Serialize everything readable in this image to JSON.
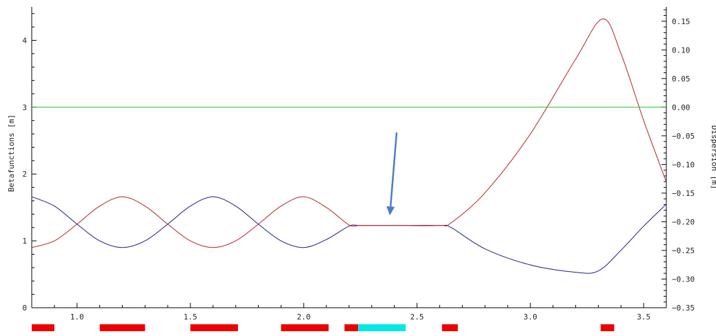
{
  "chart_data": {
    "type": "line",
    "xlabel": "",
    "ylabel_left": "Betafunctions [m]",
    "ylabel_right": "Dispersion [m]",
    "xlim": [
      0.8,
      3.6
    ],
    "ylim_left": [
      0,
      4.5
    ],
    "ylim_right": [
      -0.35,
      0.175
    ],
    "x_ticks": [
      "1.0",
      "1.5",
      "2.0",
      "2.5",
      "3.0",
      "3.5"
    ],
    "x_tick_values": [
      1.0,
      1.5,
      2.0,
      2.5,
      3.0,
      3.5
    ],
    "y_left_ticks": [
      "0",
      "1",
      "2",
      "3",
      "4"
    ],
    "y_left_tick_values": [
      0,
      1,
      2,
      3,
      4
    ],
    "y_right_ticks": [
      "−0.35",
      "−0.30",
      "−0.25",
      "−0.20",
      "−0.15",
      "−0.10",
      "−0.05",
      "0.00",
      "0.05",
      "0.10",
      "0.15"
    ],
    "y_right_tick_values": [
      -0.35,
      -0.3,
      -0.25,
      -0.2,
      -0.15,
      -0.1,
      -0.05,
      0.0,
      0.05,
      0.1,
      0.15
    ],
    "grid": false,
    "series": [
      {
        "axis": "left",
        "color": "#1a1a8c",
        "x": [
          0.8,
          0.9,
          1.0,
          1.1,
          1.2,
          1.3,
          1.4,
          1.5,
          1.6,
          1.7,
          1.8,
          1.9,
          2.0,
          2.1,
          2.2,
          2.25,
          2.4,
          2.6,
          2.65,
          2.8,
          3.0,
          3.2,
          3.3,
          3.4,
          3.5,
          3.6
        ],
        "y": [
          1.66,
          1.52,
          1.25,
          1.0,
          0.9,
          1.0,
          1.25,
          1.52,
          1.66,
          1.52,
          1.25,
          1.0,
          0.9,
          1.02,
          1.22,
          1.23,
          1.23,
          1.23,
          1.2,
          0.88,
          0.64,
          0.53,
          0.55,
          0.86,
          1.22,
          1.55
        ]
      },
      {
        "axis": "left",
        "color": "#b82020",
        "x": [
          0.8,
          0.9,
          1.0,
          1.1,
          1.2,
          1.3,
          1.4,
          1.5,
          1.6,
          1.7,
          1.8,
          1.9,
          2.0,
          2.1,
          2.2,
          2.25,
          2.4,
          2.6,
          2.65,
          2.8,
          3.0,
          3.2,
          3.32,
          3.4,
          3.5,
          3.6
        ],
        "y": [
          0.9,
          1.0,
          1.25,
          1.52,
          1.66,
          1.52,
          1.25,
          1.0,
          0.9,
          1.0,
          1.25,
          1.52,
          1.66,
          1.5,
          1.24,
          1.23,
          1.23,
          1.23,
          1.27,
          1.72,
          2.6,
          3.72,
          4.32,
          3.8,
          2.8,
          1.88
        ]
      },
      {
        "axis": "right",
        "color": "#22c022",
        "x": [
          0.8,
          3.6
        ],
        "y": [
          0.0,
          0.0
        ]
      }
    ],
    "elements": [
      {
        "start": 0.8,
        "end": 0.9,
        "color": "#ee0000"
      },
      {
        "start": 1.1,
        "end": 1.3,
        "color": "#ee0000"
      },
      {
        "start": 1.5,
        "end": 1.71,
        "color": "#ee0000"
      },
      {
        "start": 1.9,
        "end": 2.11,
        "color": "#ee0000"
      },
      {
        "start": 2.18,
        "end": 2.24,
        "color": "#ee0000"
      },
      {
        "start": 2.24,
        "end": 2.45,
        "color": "#00e8e8"
      },
      {
        "start": 2.61,
        "end": 2.68,
        "color": "#ee0000"
      },
      {
        "start": 3.31,
        "end": 3.37,
        "color": "#ee0000"
      }
    ],
    "annotation": {
      "type": "arrow",
      "color": "#4a7ec4",
      "from": [
        2.41,
        2.62
      ],
      "to": [
        2.38,
        1.38
      ]
    }
  }
}
